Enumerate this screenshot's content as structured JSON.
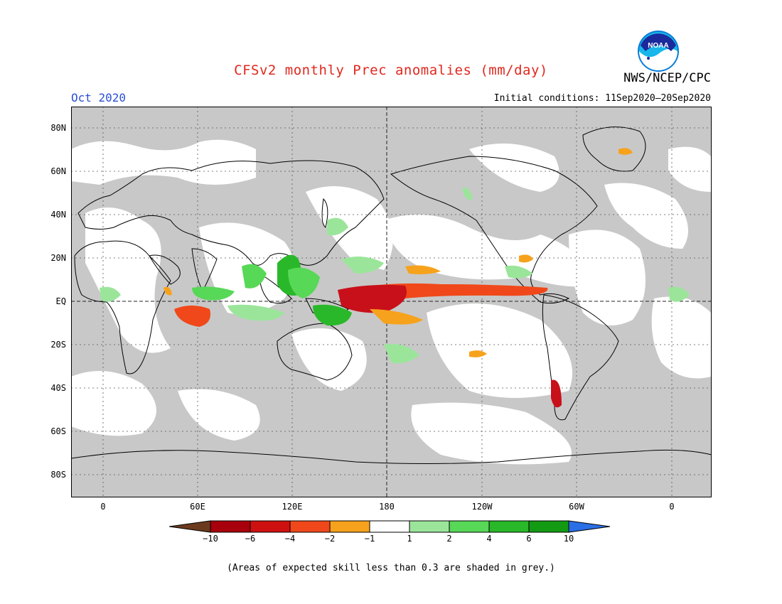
{
  "title": "CFSv2 monthly Prec anomalies (mm/day)",
  "agency": "NWS/NCEP/CPC",
  "logo_text": "NOAA",
  "month": "Oct 2020",
  "initial_conditions": "Initial conditions: 11Sep2020–20Sep2020",
  "footnote": "(Areas of expected skill less than 0.3 are shaded in grey.)",
  "latitude_labels": [
    "80N",
    "60N",
    "40N",
    "20N",
    "EQ",
    "20S",
    "40S",
    "60S",
    "80S"
  ],
  "longitude_labels": [
    "0",
    "60E",
    "120E",
    "180",
    "120W",
    "60W",
    "0"
  ],
  "colorbar": {
    "ticks": [
      "−10",
      "−6",
      "−4",
      "−2",
      "−1",
      "1",
      "2",
      "4",
      "6",
      "10"
    ],
    "colors": [
      "#6b3a1e",
      "#a8000c",
      "#cf1010",
      "#f0481a",
      "#f7a21c",
      "#ffffff",
      "#9be59b",
      "#57d857",
      "#29b829",
      "#139a13",
      "#2b6fe6"
    ]
  },
  "map_colors": {
    "low_skill_grey": "#c8c8c8",
    "ocean_white": "#ffffff",
    "dry_strong": "#c8101a",
    "dry_moderate": "#f0481a",
    "dry_light": "#f7a21c",
    "wet_light": "#9be59b",
    "wet_moderate": "#57d857",
    "wet_strong": "#29b829"
  }
}
